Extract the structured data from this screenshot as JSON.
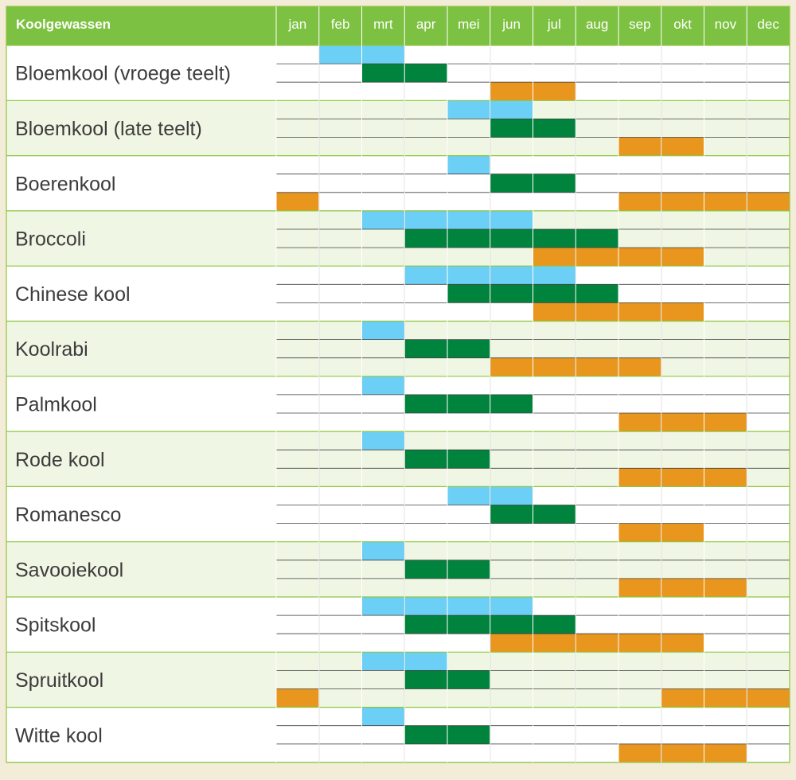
{
  "chart_data": {
    "type": "table",
    "title": "Koolgewassen",
    "months": [
      "jan",
      "feb",
      "mrt",
      "apr",
      "mei",
      "jun",
      "jul",
      "aug",
      "sep",
      "okt",
      "nov",
      "dec"
    ],
    "row_kinds": [
      "blue",
      "green",
      "orange"
    ],
    "crops": [
      {
        "name": "Bloemkool (vroege teelt)",
        "blue": [
          2,
          3
        ],
        "green": [
          3,
          4
        ],
        "orange": [
          6,
          7
        ]
      },
      {
        "name": "Bloemkool (late teelt)",
        "blue": [
          5,
          6
        ],
        "green": [
          6,
          7
        ],
        "orange": [
          9,
          10
        ]
      },
      {
        "name": "Boerenkool",
        "blue": [
          5
        ],
        "green": [
          6,
          7
        ],
        "orange": [
          1,
          9,
          10,
          11,
          12
        ]
      },
      {
        "name": "Broccoli",
        "blue": [
          3,
          4,
          5,
          6
        ],
        "green": [
          4,
          5,
          6,
          7,
          8
        ],
        "orange": [
          7,
          8,
          9,
          10
        ]
      },
      {
        "name": "Chinese kool",
        "blue": [
          4,
          5,
          6,
          7
        ],
        "green": [
          5,
          6,
          7,
          8
        ],
        "orange": [
          7,
          8,
          9,
          10
        ]
      },
      {
        "name": "Koolrabi",
        "blue": [
          3
        ],
        "green": [
          4,
          5
        ],
        "orange": [
          6,
          7,
          8,
          9
        ]
      },
      {
        "name": "Palmkool",
        "blue": [
          3
        ],
        "green": [
          4,
          5,
          6
        ],
        "orange": [
          9,
          10,
          11
        ]
      },
      {
        "name": "Rode kool",
        "blue": [
          3
        ],
        "green": [
          4,
          5
        ],
        "orange": [
          9,
          10,
          11
        ]
      },
      {
        "name": "Romanesco",
        "blue": [
          5,
          6
        ],
        "green": [
          6,
          7
        ],
        "orange": [
          9,
          10
        ]
      },
      {
        "name": "Savooiekool",
        "blue": [
          3
        ],
        "green": [
          4,
          5
        ],
        "orange": [
          9,
          10,
          11
        ]
      },
      {
        "name": "Spitskool",
        "blue": [
          3,
          4,
          5,
          6
        ],
        "green": [
          4,
          5,
          6,
          7
        ],
        "orange": [
          6,
          7,
          8,
          9,
          10
        ]
      },
      {
        "name": "Spruitkool",
        "blue": [
          3,
          4
        ],
        "green": [
          4,
          5
        ],
        "orange": [
          1,
          10,
          11,
          12
        ]
      },
      {
        "name": "Witte kool",
        "blue": [
          3
        ],
        "green": [
          4,
          5
        ],
        "orange": [
          9,
          10,
          11
        ]
      }
    ],
    "colors": {
      "blue": "#6ccff6",
      "green": "#00843d",
      "orange": "#e8961e",
      "header": "#7dc142",
      "band": "#f0f6e4",
      "grid": "#8dc63f",
      "background": "#f3ecd9",
      "label": "#3c3c3c"
    }
  }
}
